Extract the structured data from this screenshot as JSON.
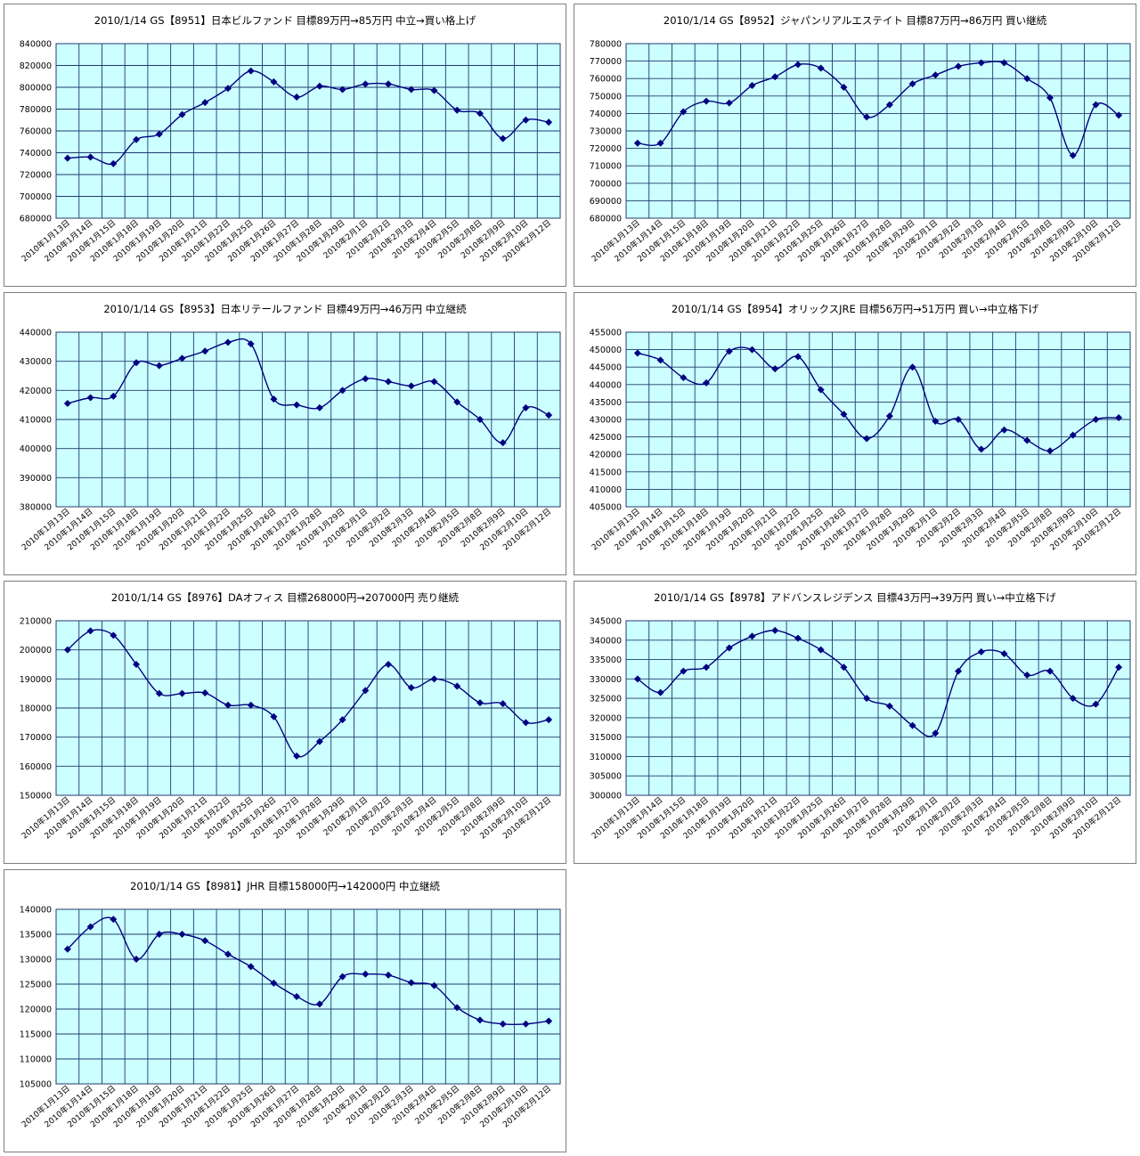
{
  "chart_data": [
    {
      "type": "line",
      "title": "2010/1/14 GS【8951】日本ビルファンド 目標89万円→85万円 中立→買い格上げ",
      "categories": [
        "2010年1月13日",
        "2010年1月14日",
        "2010年1月15日",
        "2010年1月18日",
        "2010年1月19日",
        "2010年1月20日",
        "2010年1月21日",
        "2010年1月22日",
        "2010年1月25日",
        "2010年1月26日",
        "2010年1月27日",
        "2010年1月28日",
        "2010年1月29日",
        "2010年2月1日",
        "2010年2月2日",
        "2010年2月3日",
        "2010年2月4日",
        "2010年2月5日",
        "2010年2月8日",
        "2010年2月9日",
        "2010年2月10日",
        "2010年2月12日"
      ],
      "values": [
        735000,
        736000,
        730000,
        752000,
        757000,
        775000,
        786000,
        799000,
        815000,
        805000,
        791000,
        801000,
        798000,
        803000,
        803000,
        798000,
        797000,
        779000,
        776000,
        753000,
        770000,
        768000
      ],
      "ylim": [
        680000,
        840000
      ],
      "ystep": 20000,
      "grid": true
    },
    {
      "type": "line",
      "title": "2010/1/14 GS【8952】ジャパンリアルエステイト 目標87万円→86万円 買い継続",
      "categories": [
        "2010年1月13日",
        "2010年1月14日",
        "2010年1月15日",
        "2010年1月18日",
        "2010年1月19日",
        "2010年1月20日",
        "2010年1月21日",
        "2010年1月22日",
        "2010年1月25日",
        "2010年1月26日",
        "2010年1月27日",
        "2010年1月28日",
        "2010年1月29日",
        "2010年2月1日",
        "2010年2月2日",
        "2010年2月3日",
        "2010年2月4日",
        "2010年2月5日",
        "2010年2月8日",
        "2010年2月9日",
        "2010年2月10日",
        "2010年2月12日"
      ],
      "values": [
        723000,
        723000,
        741000,
        747000,
        746000,
        756000,
        761000,
        768000,
        766000,
        755000,
        738000,
        745000,
        757000,
        762000,
        767000,
        769000,
        769000,
        760000,
        749000,
        716000,
        745000,
        739000
      ],
      "ylim": [
        680000,
        780000
      ],
      "ystep": 10000,
      "grid": true
    },
    {
      "type": "line",
      "title": "2010/1/14 GS【8953】日本リテールファンド 目標49万円→46万円 中立継続",
      "categories": [
        "2010年1月13日",
        "2010年1月14日",
        "2010年1月15日",
        "2010年1月18日",
        "2010年1月19日",
        "2010年1月20日",
        "2010年1月21日",
        "2010年1月22日",
        "2010年1月25日",
        "2010年1月26日",
        "2010年1月27日",
        "2010年1月28日",
        "2010年1月29日",
        "2010年2月1日",
        "2010年2月2日",
        "2010年2月3日",
        "2010年2月4日",
        "2010年2月5日",
        "2010年2月8日",
        "2010年2月9日",
        "2010年2月10日",
        "2010年2月12日"
      ],
      "values": [
        415500,
        417500,
        418000,
        429500,
        428500,
        431000,
        433500,
        436500,
        436000,
        417000,
        415000,
        414000,
        420000,
        424000,
        423000,
        421500,
        423000,
        416000,
        410000,
        402000,
        414000,
        411500
      ],
      "ylim": [
        380000,
        440000
      ],
      "ystep": 10000,
      "grid": true
    },
    {
      "type": "line",
      "title": "2010/1/14 GS【8954】オリックスJRE 目標56万円→51万円 買い→中立格下げ",
      "categories": [
        "2010年1月13日",
        "2010年1月14日",
        "2010年1月15日",
        "2010年1月18日",
        "2010年1月19日",
        "2010年1月20日",
        "2010年1月21日",
        "2010年1月22日",
        "2010年1月25日",
        "2010年1月26日",
        "2010年1月27日",
        "2010年1月28日",
        "2010年1月29日",
        "2010年2月1日",
        "2010年2月2日",
        "2010年2月3日",
        "2010年2月4日",
        "2010年2月5日",
        "2010年2月8日",
        "2010年2月9日",
        "2010年2月10日",
        "2010年2月12日"
      ],
      "values": [
        449000,
        447000,
        442000,
        440500,
        449500,
        450000,
        444500,
        448000,
        438500,
        431500,
        424500,
        431000,
        445000,
        429500,
        430000,
        421500,
        427000,
        424000,
        421000,
        425500,
        430000,
        430500
      ],
      "ylim": [
        405000,
        455000
      ],
      "ystep": 5000,
      "grid": true
    },
    {
      "type": "line",
      "title": "2010/1/14 GS【8976】DAオフィス 目標268000円→207000円 売り継続",
      "categories": [
        "2010年1月13日",
        "2010年1月14日",
        "2010年1月15日",
        "2010年1月18日",
        "2010年1月19日",
        "2010年1月20日",
        "2010年1月21日",
        "2010年1月22日",
        "2010年1月25日",
        "2010年1月26日",
        "2010年1月27日",
        "2010年1月28日",
        "2010年1月29日",
        "2010年2月1日",
        "2010年2月2日",
        "2010年2月3日",
        "2010年2月4日",
        "2010年2月5日",
        "2010年2月8日",
        "2010年2月9日",
        "2010年2月10日",
        "2010年2月12日"
      ],
      "values": [
        200000,
        206500,
        205000,
        195000,
        185000,
        185000,
        185200,
        181000,
        181000,
        177000,
        163500,
        168500,
        176000,
        186000,
        195000,
        187000,
        190000,
        187500,
        181800,
        181500,
        175000,
        176000
      ],
      "ylim": [
        150000,
        210000
      ],
      "ystep": 10000,
      "grid": true
    },
    {
      "type": "line",
      "title": "2010/1/14 GS【8978】アドバンスレジデンス 目標43万円→39万円 買い→中立格下げ",
      "categories": [
        "2010年1月13日",
        "2010年1月14日",
        "2010年1月15日",
        "2010年1月18日",
        "2010年1月19日",
        "2010年1月20日",
        "2010年1月21日",
        "2010年1月22日",
        "2010年1月25日",
        "2010年1月26日",
        "2010年1月27日",
        "2010年1月28日",
        "2010年1月29日",
        "2010年2月1日",
        "2010年2月2日",
        "2010年2月3日",
        "2010年2月4日",
        "2010年2月5日",
        "2010年2月8日",
        "2010年2月9日",
        "2010年2月10日",
        "2010年2月12日"
      ],
      "values": [
        330000,
        326500,
        332000,
        333000,
        338000,
        341000,
        342500,
        340500,
        337500,
        333000,
        325000,
        323000,
        318000,
        316000,
        332000,
        337000,
        336500,
        331000,
        332000,
        325000,
        323500,
        333000
      ],
      "ylim": [
        300000,
        345000
      ],
      "ystep": 5000,
      "grid": true
    },
    {
      "type": "line",
      "title": "2010/1/14 GS【8981】JHR 目標158000円→142000円 中立継続",
      "categories": [
        "2010年1月13日",
        "2010年1月14日",
        "2010年1月15日",
        "2010年1月18日",
        "2010年1月19日",
        "2010年1月20日",
        "2010年1月21日",
        "2010年1月22日",
        "2010年1月25日",
        "2010年1月26日",
        "2010年1月27日",
        "2010年1月28日",
        "2010年1月29日",
        "2010年2月1日",
        "2010年2月2日",
        "2010年2月3日",
        "2010年2月4日",
        "2010年2月5日",
        "2010年2月8日",
        "2010年2月9日",
        "2010年2月10日",
        "2010年2月12日"
      ],
      "values": [
        132000,
        136500,
        138000,
        130000,
        135000,
        135000,
        133700,
        131000,
        128500,
        125200,
        122500,
        121000,
        126500,
        127000,
        126800,
        125300,
        124700,
        120300,
        117800,
        117000,
        117000,
        117600
      ],
      "ylim": [
        105000,
        140000
      ],
      "ystep": 5000,
      "grid": true
    }
  ],
  "style": {
    "plot_background": "#ccffff",
    "grid_color": "#1f3b6e",
    "line_color": "#000080",
    "marker_color": "#000080"
  }
}
